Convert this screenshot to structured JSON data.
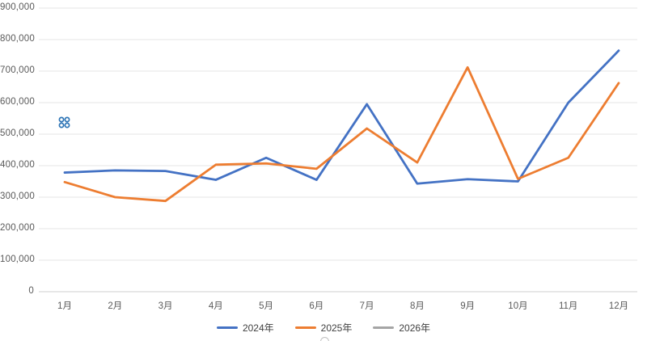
{
  "chart_data": {
    "type": "line",
    "title": "",
    "xlabel": "",
    "ylabel": "",
    "categories": [
      "1月",
      "2月",
      "3月",
      "4月",
      "5月",
      "6月",
      "7月",
      "8月",
      "9月",
      "10月",
      "11月",
      "12月"
    ],
    "series": [
      {
        "name": "2024年",
        "color": "#4472C4",
        "values": [
          378000,
          385000,
          383000,
          355000,
          425000,
          355000,
          595000,
          343000,
          357000,
          350000,
          600000,
          765000
        ]
      },
      {
        "name": "2025年",
        "color": "#ED7D31",
        "values": [
          348000,
          300000,
          288000,
          403000,
          407000,
          390000,
          518000,
          410000,
          712000,
          358000,
          425000,
          662000
        ]
      },
      {
        "name": "2026年",
        "color": "#A5A5A5",
        "values": []
      }
    ],
    "ylim": [
      0,
      900000
    ],
    "ytick_step": 100000,
    "ytick_labels": [
      "0",
      "100,000",
      "200,000",
      "300,000",
      "400,000",
      "500,000",
      "600,000",
      "700,000",
      "800,000",
      "900,000"
    ],
    "grid": true,
    "legend_position": "bottom"
  },
  "icons": {
    "handle_icon": "four-dots-handle",
    "resize_handle": "circle-resize-handle"
  },
  "colors": {
    "background": "#FFFFFF",
    "gridline": "#E4E4E4",
    "axis_line": "#CFCFCF",
    "tick_label": "#595959",
    "legend_label": "#404040",
    "handle_blue": "#2E75B6"
  }
}
